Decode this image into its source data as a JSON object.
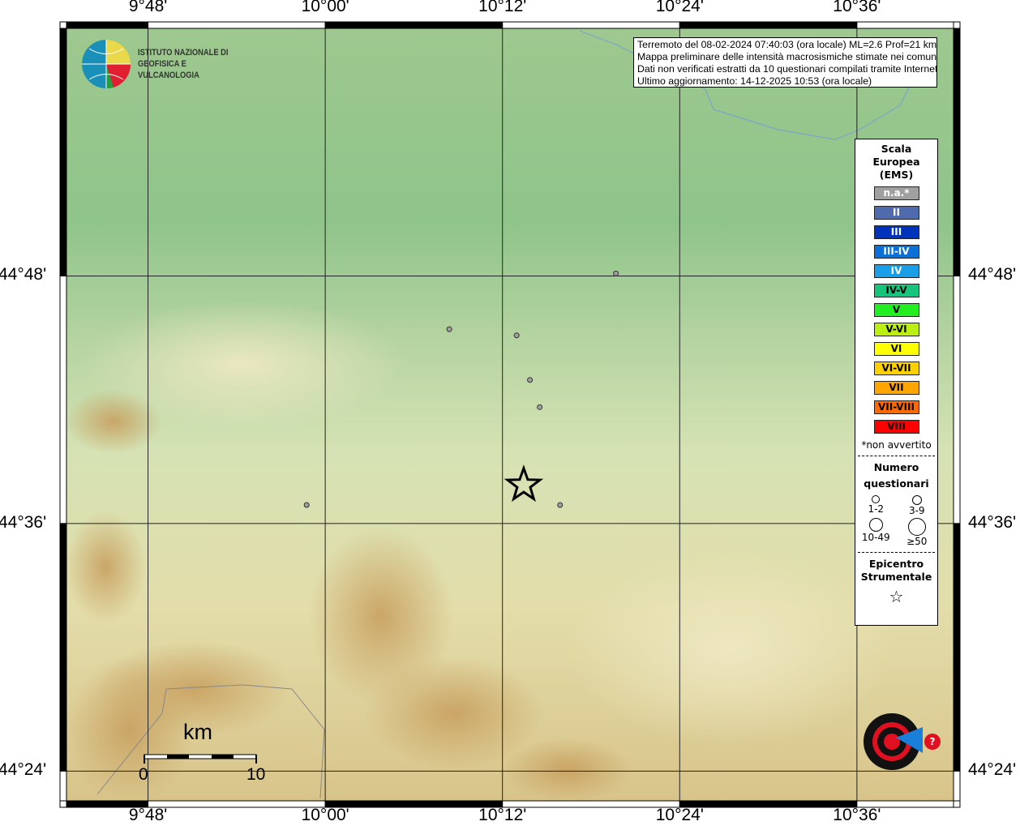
{
  "map": {
    "bounds": {
      "lon_min": 9.708,
      "lon_max": 10.709,
      "lat_min": 44.376,
      "lat_max": 45.0
    },
    "lon_ticks": [
      {
        "value": 9.8,
        "label": "9°48'"
      },
      {
        "value": 10.0,
        "label": "10°00'"
      },
      {
        "value": 10.2,
        "label": "10°12'"
      },
      {
        "value": 10.4,
        "label": "10°24'"
      },
      {
        "value": 10.6,
        "label": "10°36'"
      }
    ],
    "lat_ticks": [
      {
        "value": 44.8,
        "label": "44°48'"
      },
      {
        "value": 44.6,
        "label": "44°36'"
      },
      {
        "value": 44.4,
        "label": "44°24'"
      }
    ],
    "epicenter": {
      "lon": 10.224,
      "lat": 44.631
    },
    "questionnaire_points": [
      {
        "lon": 10.328,
        "lat": 44.802,
        "class": "1-2"
      },
      {
        "lon": 10.14,
        "lat": 44.757,
        "class": "1-2"
      },
      {
        "lon": 10.216,
        "lat": 44.752,
        "class": "1-2"
      },
      {
        "lon": 10.231,
        "lat": 44.716,
        "class": "1-2"
      },
      {
        "lon": 10.242,
        "lat": 44.694,
        "class": "1-2"
      },
      {
        "lon": 10.265,
        "lat": 44.615,
        "class": "1-2"
      },
      {
        "lon": 9.979,
        "lat": 44.615,
        "class": "1-2"
      }
    ],
    "scale_bar": {
      "unit": "km",
      "start": "0",
      "end": "10"
    }
  },
  "info": {
    "lines": [
      "Terremoto del 08-02-2024 07:40:03 (ora locale) ML=2.6 Prof=21 km",
      "Mappa preliminare delle intensità macrosismiche stimate nei comuni",
      "Dati non verificati estratti da 10 questionari compilati tramite Internet.",
      "Ultimo aggiornamento: 14-12-2025 10:53 (ora locale)"
    ]
  },
  "legend": {
    "title": [
      "Scala",
      "Europea",
      "(EMS)"
    ],
    "scale": [
      {
        "label": "n.a.*",
        "color": "#a0a0a0",
        "text": "#fff"
      },
      {
        "label": "II",
        "color": "#4f6aad",
        "text": "#fff"
      },
      {
        "label": "III",
        "color": "#0033bb",
        "text": "#fff"
      },
      {
        "label": "III-IV",
        "color": "#0a6fd6",
        "text": "#fff"
      },
      {
        "label": "IV",
        "color": "#1a9ee8",
        "text": "#fff"
      },
      {
        "label": "IV-V",
        "color": "#16c47c",
        "text": "#000"
      },
      {
        "label": "V",
        "color": "#22ee22",
        "text": "#000"
      },
      {
        "label": "V-VI",
        "color": "#bbee11",
        "text": "#000"
      },
      {
        "label": "VI",
        "color": "#ffff00",
        "text": "#000"
      },
      {
        "label": "VI-VII",
        "color": "#ffd000",
        "text": "#000"
      },
      {
        "label": "VII",
        "color": "#ffa500",
        "text": "#000"
      },
      {
        "label": "VII-VIII",
        "color": "#ff6a00",
        "text": "#000"
      },
      {
        "label": "VIII",
        "color": "#ff0000",
        "text": "#000"
      }
    ],
    "note": "*non avvertito",
    "count_title": [
      "Numero",
      "questionari"
    ],
    "counts": [
      "1-2",
      "3-9",
      "10-49",
      "≥50"
    ],
    "epicenter_title": [
      "Epicentro",
      "Strumentale"
    ]
  },
  "logos": {
    "ingv": "ISTITUTO NAZIONALE DI GEOFISICA E VULCANOLOGIA",
    "hsit": "www.haisentitoilterremoto.it"
  }
}
